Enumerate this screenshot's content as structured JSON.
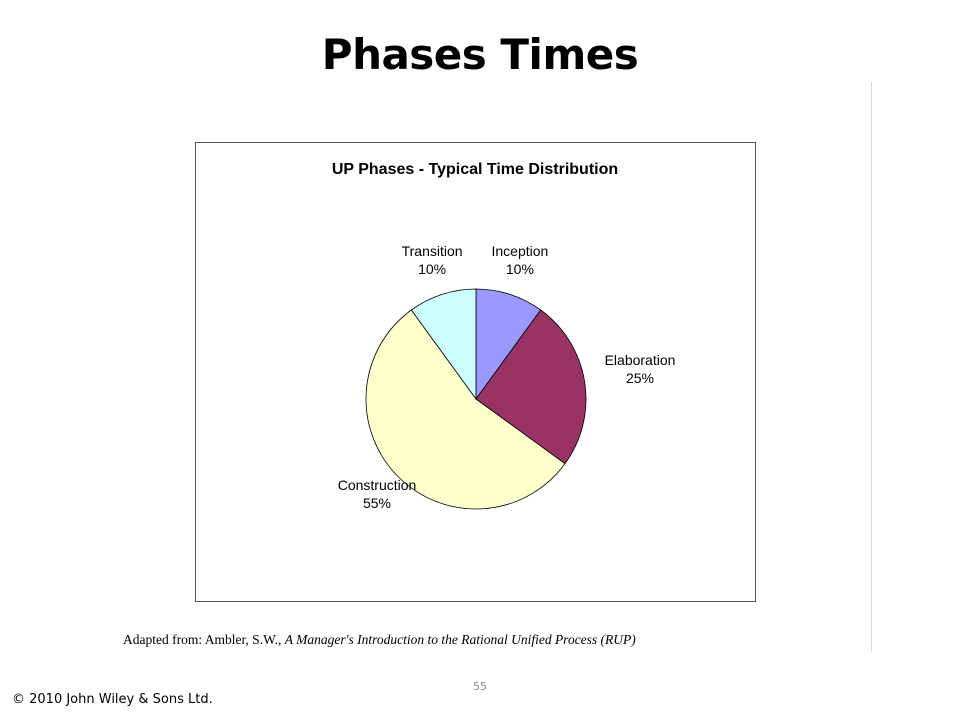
{
  "slide": {
    "title": "Phases Times",
    "citation_prefix": "Adapted from: Ambler, S.W., ",
    "citation_work": "A Manager's Introduction to the Rational Unified Process (RUP)",
    "page_number": "55",
    "copyright": "© 2010 John Wiley & Sons Ltd."
  },
  "chart_data": {
    "type": "pie",
    "title": "UP Phases - Typical Time Distribution",
    "slices": [
      {
        "label": "Inception",
        "value": 10,
        "value_label": "10%",
        "color": "#9999ff"
      },
      {
        "label": "Elaboration",
        "value": 25,
        "value_label": "25%",
        "color": "#993366"
      },
      {
        "label": "Construction",
        "value": 55,
        "value_label": "55%",
        "color": "#ffffcc"
      },
      {
        "label": "Transition",
        "value": 10,
        "value_label": "10%",
        "color": "#ccffff"
      }
    ],
    "start_angle": "12 o'clock",
    "direction": "clockwise",
    "legend": "none"
  }
}
